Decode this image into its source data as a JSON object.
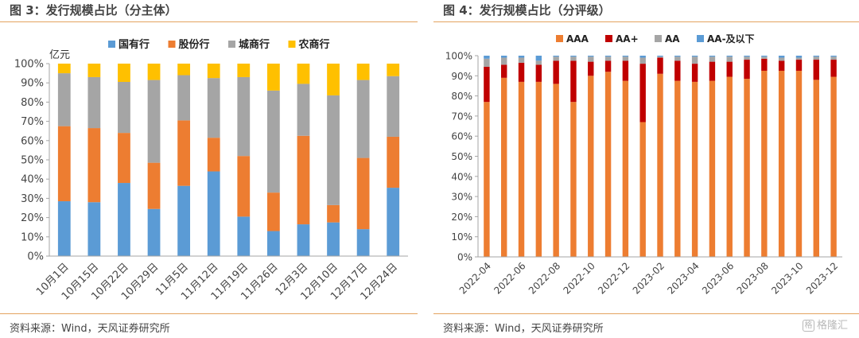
{
  "left": {
    "title": "图 3：发行规模占比（分主体）",
    "unit": "亿元",
    "source": "资料来源：Wind，天风证券研究所"
  },
  "right": {
    "title": "图 4：发行规模占比（分评级）",
    "source": "资料来源：Wind，天风证券研究所"
  },
  "watermark": {
    "icon": "格",
    "text": "格隆汇"
  },
  "chart_data": [
    {
      "type": "bar",
      "stacked": true,
      "categories": [
        "10月1日",
        "10月15日",
        "10月22日",
        "10月29日",
        "11月5日",
        "11月12日",
        "11月19日",
        "11月26日",
        "12月3日",
        "12月10日",
        "12月17日",
        "12月24日"
      ],
      "series": [
        {
          "name": "国有行",
          "color": "#5b9bd5",
          "values": [
            28.5,
            28,
            38,
            24.5,
            36.5,
            44,
            20.5,
            13,
            16.5,
            17.5,
            14,
            35.5
          ]
        },
        {
          "name": "股份行",
          "color": "#ed7d31",
          "values": [
            39,
            38.5,
            26,
            24,
            34,
            17.5,
            31.5,
            20,
            46,
            9,
            37,
            26.5
          ]
        },
        {
          "name": "城商行",
          "color": "#a5a5a5",
          "values": [
            27.5,
            26.5,
            26.5,
            43,
            23.5,
            31,
            41,
            53,
            27,
            57,
            40.5,
            31.5
          ]
        },
        {
          "name": "农商行",
          "color": "#ffc000",
          "values": [
            5,
            7,
            9.5,
            8.5,
            6,
            7.5,
            7,
            14,
            10.5,
            16.5,
            8.5,
            6.5
          ]
        }
      ],
      "ylim": [
        0,
        100
      ],
      "yticks": [
        "0%",
        "10%",
        "20%",
        "30%",
        "40%",
        "50%",
        "60%",
        "70%",
        "80%",
        "90%",
        "100%"
      ],
      "legend": "top",
      "grid": false
    },
    {
      "type": "bar",
      "stacked": true,
      "categories": [
        "2022-04",
        "2022-05",
        "2022-06",
        "2022-07",
        "2022-08",
        "2022-09",
        "2022-10",
        "2022-11",
        "2022-12",
        "2023-01",
        "2023-02",
        "2023-03",
        "2023-04",
        "2023-05",
        "2023-06",
        "2023-07",
        "2023-08",
        "2023-09",
        "2023-10",
        "2023-11",
        "2023-12"
      ],
      "xtick_labels": [
        "2022-04",
        "2022-06",
        "2022-08",
        "2022-10",
        "2022-12",
        "2023-02",
        "2023-04",
        "2023-06",
        "2023-08",
        "2023-10",
        "2023-12"
      ],
      "series": [
        {
          "name": "AAA",
          "color": "#ed7d31",
          "values": [
            77,
            89,
            87,
            87,
            86,
            77,
            90,
            92,
            87.5,
            67,
            91,
            87.5,
            87,
            87.5,
            89.5,
            88.5,
            92.5,
            92.5,
            92.5,
            88,
            89.5
          ]
        },
        {
          "name": "AA+",
          "color": "#c00000",
          "values": [
            17.5,
            6.5,
            9.5,
            8.5,
            11.5,
            20.5,
            7,
            5.5,
            10,
            29,
            8,
            10,
            9,
            9.5,
            7.5,
            9.5,
            6,
            5,
            5.5,
            10,
            8.5
          ]
        },
        {
          "name": "AA",
          "color": "#a5a5a5",
          "values": [
            4,
            3.5,
            2.5,
            2,
            2,
            2,
            2.5,
            2,
            2,
            3,
            0.5,
            2,
            3.5,
            2.5,
            2.5,
            1.5,
            1,
            1.5,
            1,
            1.5,
            1.5
          ]
        },
        {
          "name": "AA-及以下",
          "color": "#5b9bd5",
          "values": [
            1.5,
            1,
            1,
            2.5,
            0.5,
            0.5,
            0.5,
            0.5,
            0.5,
            1,
            0.5,
            0.5,
            0.5,
            0.5,
            0.5,
            0.5,
            0.5,
            1,
            1,
            0.5,
            0.5
          ]
        }
      ],
      "ylim": [
        0,
        100
      ],
      "yticks": [
        "0%",
        "10%",
        "20%",
        "30%",
        "40%",
        "50%",
        "60%",
        "70%",
        "80%",
        "90%",
        "100%"
      ],
      "legend": "top",
      "grid": false
    }
  ]
}
